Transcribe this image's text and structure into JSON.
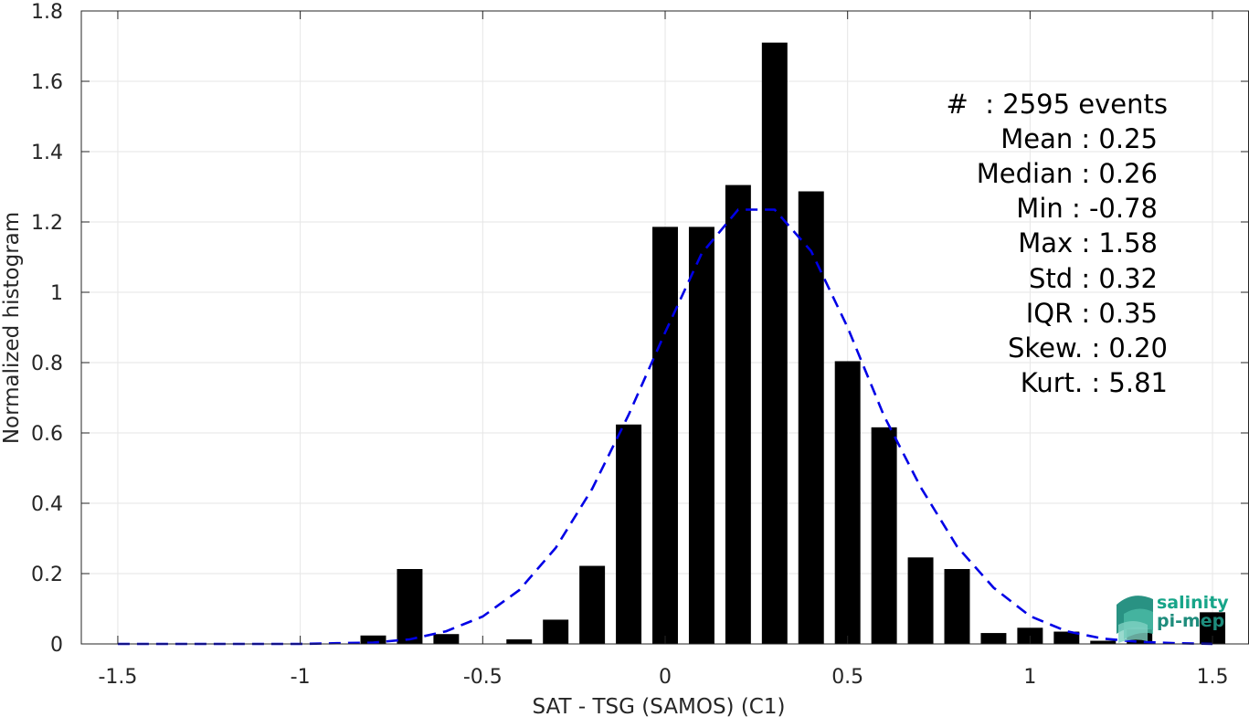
{
  "chart_data": {
    "type": "bar",
    "xlabel": "SAT - TSG (SAMOS) (C1)",
    "ylabel": "Normalized histogram",
    "xlim": [
      -1.6,
      1.6
    ],
    "ylim": [
      0,
      1.8
    ],
    "xticks": [
      -1.5,
      -1,
      -0.5,
      0,
      0.5,
      1,
      1.5
    ],
    "xtick_labels": [
      "-1.5",
      "-1",
      "-0.5",
      "0",
      "0.5",
      "1",
      "1.5"
    ],
    "yticks": [
      0,
      0.2,
      0.4,
      0.6,
      0.8,
      1,
      1.2,
      1.4,
      1.6,
      1.8
    ],
    "ytick_labels": [
      "0",
      "0.2",
      "0.4",
      "0.6",
      "0.8",
      "1",
      "1.2",
      "1.4",
      "1.6",
      "1.8"
    ],
    "grid": true,
    "bar_width": 0.07,
    "bars": [
      {
        "x": -0.8,
        "y": 0.024
      },
      {
        "x": -0.7,
        "y": 0.213
      },
      {
        "x": -0.6,
        "y": 0.028
      },
      {
        "x": -0.4,
        "y": 0.013
      },
      {
        "x": -0.3,
        "y": 0.069
      },
      {
        "x": -0.2,
        "y": 0.222
      },
      {
        "x": -0.1,
        "y": 0.624
      },
      {
        "x": 0.0,
        "y": 1.186
      },
      {
        "x": 0.1,
        "y": 1.186
      },
      {
        "x": 0.2,
        "y": 1.305
      },
      {
        "x": 0.3,
        "y": 1.71
      },
      {
        "x": 0.4,
        "y": 1.287
      },
      {
        "x": 0.5,
        "y": 0.804
      },
      {
        "x": 0.6,
        "y": 0.616
      },
      {
        "x": 0.7,
        "y": 0.246
      },
      {
        "x": 0.8,
        "y": 0.213
      },
      {
        "x": 0.9,
        "y": 0.031
      },
      {
        "x": 1.0,
        "y": 0.046
      },
      {
        "x": 1.1,
        "y": 0.035
      },
      {
        "x": 1.2,
        "y": 0.009
      },
      {
        "x": 1.3,
        "y": 0.042
      },
      {
        "x": 1.5,
        "y": 0.09
      }
    ],
    "fit_curve": {
      "style": "dashed",
      "color": "#0000e6",
      "x": [
        -1.5,
        -1.4,
        -1.3,
        -1.2,
        -1.1,
        -1.0,
        -0.9,
        -0.8,
        -0.7,
        -0.6,
        -0.5,
        -0.4,
        -0.3,
        -0.2,
        -0.1,
        0.0,
        0.1,
        0.2,
        0.3,
        0.4,
        0.5,
        0.6,
        0.7,
        0.8,
        0.9,
        1.0,
        1.1,
        1.2,
        1.3,
        1.4,
        1.5
      ],
      "y": [
        0.0,
        0.0,
        0.0,
        0.0,
        0.0,
        0.0,
        0.002,
        0.004,
        0.013,
        0.036,
        0.078,
        0.153,
        0.273,
        0.441,
        0.652,
        0.886,
        1.11,
        1.235,
        1.235,
        1.117,
        0.9,
        0.648,
        0.446,
        0.277,
        0.16,
        0.079,
        0.036,
        0.015,
        0.006,
        0.002,
        0.0
      ]
    },
    "annotations": [
      "#  : 2595 events",
      "Mean : 0.25",
      "Median : 0.26",
      "Min : -0.78",
      "Max : 1.58",
      "Std : 0.32",
      "IQR : 0.35",
      "Skew. : 0.20",
      "Kurt. : 5.81"
    ]
  },
  "logo": {
    "line1": "salinity",
    "line2": "pi-mep",
    "text_color": "#17a589",
    "accent_color": "#1e8c7c"
  },
  "colors": {
    "bar": "#000000",
    "grid": "#e6e6e6",
    "axis": "#262626",
    "curve": "#0000e6"
  }
}
